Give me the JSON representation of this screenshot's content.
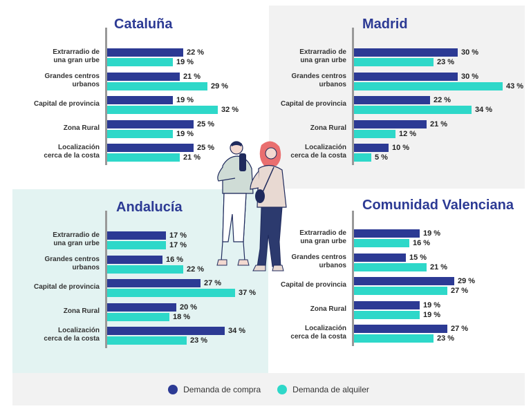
{
  "colors": {
    "compra": "#2c3a94",
    "alquiler": "#2ed8c9",
    "title": "#2c3a94"
  },
  "legend": {
    "compra": "Demanda de compra",
    "alquiler": "Demanda de alquiler"
  },
  "illustration": "couple-walking-icon",
  "chart_data": [
    {
      "type": "bar",
      "orientation": "horizontal",
      "title": "Cataluña",
      "categories": [
        "Extrarradio de\nuna gran urbe",
        "Grandes centros\nurbanos",
        "Capital de provincia",
        "Zona Rural",
        "Localización\ncerca de la costa"
      ],
      "series": [
        {
          "name": "Demanda de compra",
          "values": [
            22,
            21,
            19,
            25,
            25
          ],
          "labels": [
            "22 %",
            "21 %",
            "19 %",
            "25 %",
            "25 %"
          ]
        },
        {
          "name": "Demanda de alquiler",
          "values": [
            19,
            29,
            32,
            19,
            21
          ],
          "labels": [
            "19 %",
            "29 %",
            "32 %",
            "19 %",
            "21 %"
          ]
        }
      ]
    },
    {
      "type": "bar",
      "orientation": "horizontal",
      "title": "Madrid",
      "categories": [
        "Extrarradio de\nuna gran urbe",
        "Grandes centros\nurbanos",
        "Capital de provincia",
        "Zona Rural",
        "Localización\ncerca de la costa"
      ],
      "series": [
        {
          "name": "Demanda de compra",
          "values": [
            30,
            30,
            22,
            21,
            10
          ],
          "labels": [
            "30 %",
            "30 %",
            "22 %",
            "21 %",
            "10 %"
          ]
        },
        {
          "name": "Demanda de alquiler",
          "values": [
            23,
            43,
            34,
            12,
            5
          ],
          "labels": [
            "23 %",
            "43 %",
            "34 %",
            "12 %",
            "5 %"
          ]
        }
      ]
    },
    {
      "type": "bar",
      "orientation": "horizontal",
      "title": "Andalucía",
      "categories": [
        "Extrarradio de\nuna gran urbe",
        "Grandes centros\nurbanos",
        "Capital de provincia",
        "Zona Rural",
        "Localización\ncerca de la costa"
      ],
      "series": [
        {
          "name": "Demanda de compra",
          "values": [
            17,
            16,
            27,
            20,
            34
          ],
          "labels": [
            "17 %",
            "16 %",
            "27 %",
            "20 %",
            "34 %"
          ]
        },
        {
          "name": "Demanda de alquiler",
          "values": [
            17,
            22,
            37,
            18,
            23
          ],
          "labels": [
            "17 %",
            "22 %",
            "37 %",
            "18 %",
            "23 %"
          ]
        }
      ]
    },
    {
      "type": "bar",
      "orientation": "horizontal",
      "title": "Comunidad Valenciana",
      "categories": [
        "Extrarradio de\nuna gran urbe",
        "Grandes centros\nurbanos",
        "Capital de provincia",
        "Zona Rural",
        "Localización\ncerca de la costa"
      ],
      "series": [
        {
          "name": "Demanda de compra",
          "values": [
            19,
            15,
            29,
            19,
            27
          ],
          "labels": [
            "19 %",
            "15 %",
            "29 %",
            "19 %",
            "27 %"
          ]
        },
        {
          "name": "Demanda de alquiler",
          "values": [
            16,
            21,
            27,
            19,
            23
          ],
          "labels": [
            "16 %",
            "21 %",
            "27 %",
            "19 %",
            "23 %"
          ]
        }
      ]
    }
  ]
}
